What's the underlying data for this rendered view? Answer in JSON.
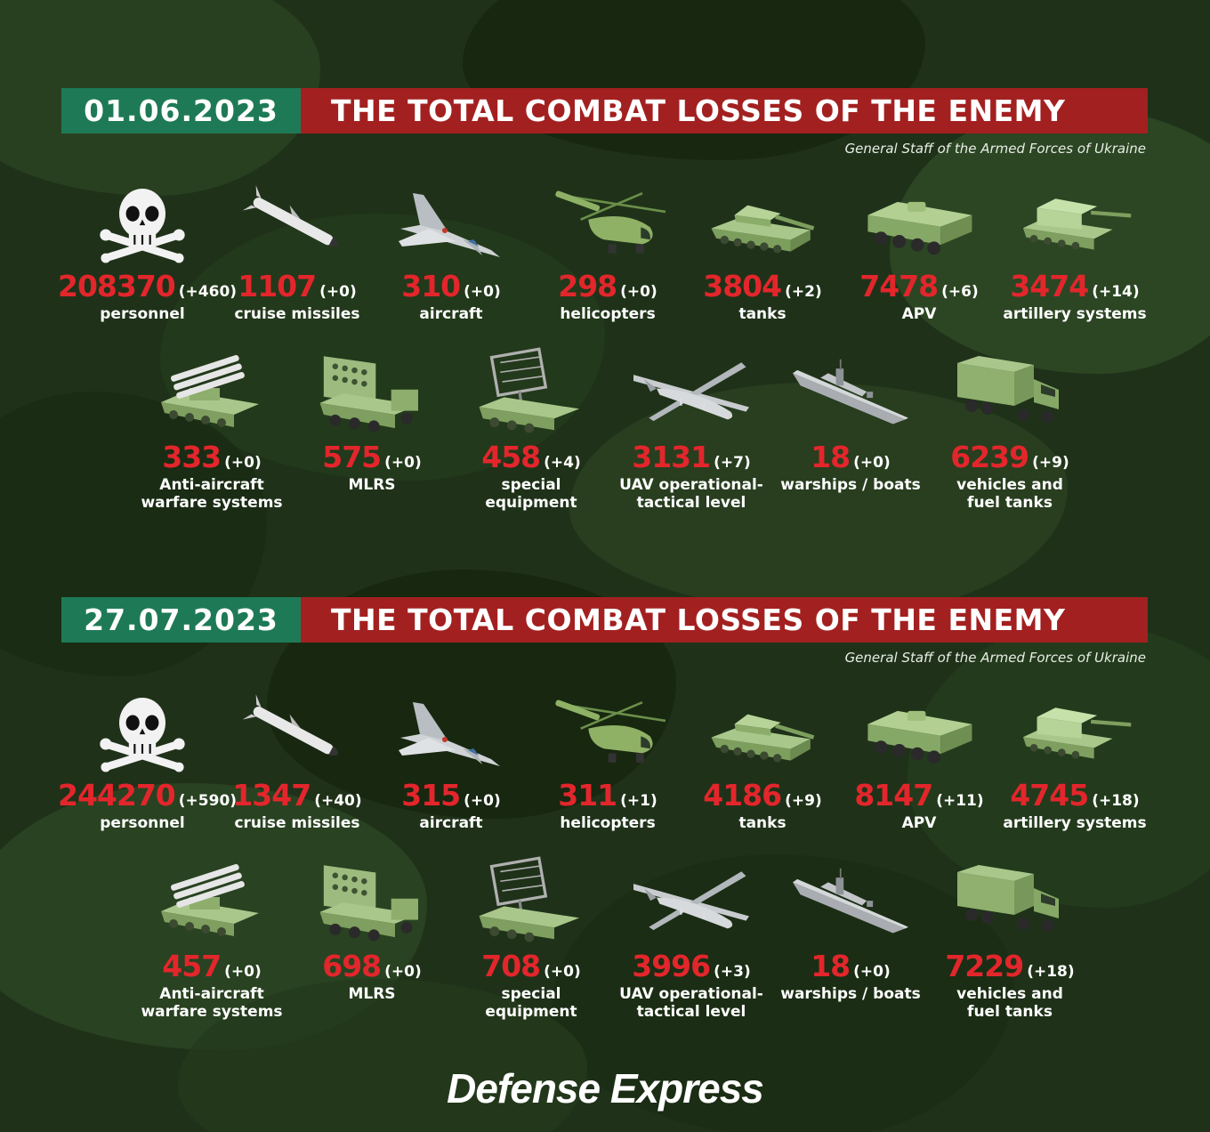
{
  "source": "General Staff of the Armed Forces of Ukraine",
  "title": "THE TOTAL COMBAT LOSSES OF THE ENEMY",
  "brand": "Defense Express",
  "colors": {
    "date_bg": "#1e7a56",
    "title_bg": "#a32020",
    "number": "#e3262c",
    "background": "#1f3219"
  },
  "panels": [
    {
      "date": "01.06.2023",
      "items": [
        {
          "icon": "skull-icon",
          "value": "208370",
          "delta": "(+460)",
          "label": "personnel"
        },
        {
          "icon": "cruise-missile-icon",
          "value": "1107",
          "delta": "(+0)",
          "label": "cruise missiles"
        },
        {
          "icon": "aircraft-icon",
          "value": "310",
          "delta": "(+0)",
          "label": "aircraft"
        },
        {
          "icon": "helicopter-icon",
          "value": "298",
          "delta": "(+0)",
          "label": "helicopters"
        },
        {
          "icon": "tank-icon",
          "value": "3804",
          "delta": "(+2)",
          "label": "tanks"
        },
        {
          "icon": "apv-icon",
          "value": "7478",
          "delta": "(+6)",
          "label": "APV"
        },
        {
          "icon": "artillery-icon",
          "value": "3474",
          "delta": "(+14)",
          "label": "artillery systems"
        },
        {
          "icon": "anti-aircraft-icon",
          "value": "333",
          "delta": "(+0)",
          "label": "Anti-aircraft\nwarfare systems"
        },
        {
          "icon": "mlrs-icon",
          "value": "575",
          "delta": "(+0)",
          "label": "MLRS"
        },
        {
          "icon": "radar-vehicle-icon",
          "value": "458",
          "delta": "(+4)",
          "label": "special\nequipment"
        },
        {
          "icon": "uav-icon",
          "value": "3131",
          "delta": "(+7)",
          "label": "UAV operational-\ntactical level"
        },
        {
          "icon": "warship-icon",
          "value": "18",
          "delta": "(+0)",
          "label": "warships / boats"
        },
        {
          "icon": "truck-icon",
          "value": "6239",
          "delta": "(+9)",
          "label": "vehicles and\nfuel tanks"
        }
      ]
    },
    {
      "date": "27.07.2023",
      "items": [
        {
          "icon": "skull-icon",
          "value": "244270",
          "delta": "(+590)",
          "label": "personnel"
        },
        {
          "icon": "cruise-missile-icon",
          "value": "1347",
          "delta": "(+40)",
          "label": "cruise missiles"
        },
        {
          "icon": "aircraft-icon",
          "value": "315",
          "delta": "(+0)",
          "label": "aircraft"
        },
        {
          "icon": "helicopter-icon",
          "value": "311",
          "delta": "(+1)",
          "label": "helicopters"
        },
        {
          "icon": "tank-icon",
          "value": "4186",
          "delta": "(+9)",
          "label": "tanks"
        },
        {
          "icon": "apv-icon",
          "value": "8147",
          "delta": "(+11)",
          "label": "APV"
        },
        {
          "icon": "artillery-icon",
          "value": "4745",
          "delta": "(+18)",
          "label": "artillery systems"
        },
        {
          "icon": "anti-aircraft-icon",
          "value": "457",
          "delta": "(+0)",
          "label": "Anti-aircraft\nwarfare systems"
        },
        {
          "icon": "mlrs-icon",
          "value": "698",
          "delta": "(+0)",
          "label": "MLRS"
        },
        {
          "icon": "radar-vehicle-icon",
          "value": "708",
          "delta": "(+0)",
          "label": "special\nequipment"
        },
        {
          "icon": "uav-icon",
          "value": "3996",
          "delta": "(+3)",
          "label": "UAV operational-\ntactical level"
        },
        {
          "icon": "warship-icon",
          "value": "18",
          "delta": "(+0)",
          "label": "warships / boats"
        },
        {
          "icon": "truck-icon",
          "value": "7229",
          "delta": "(+18)",
          "label": "vehicles and\nfuel tanks"
        }
      ]
    }
  ]
}
